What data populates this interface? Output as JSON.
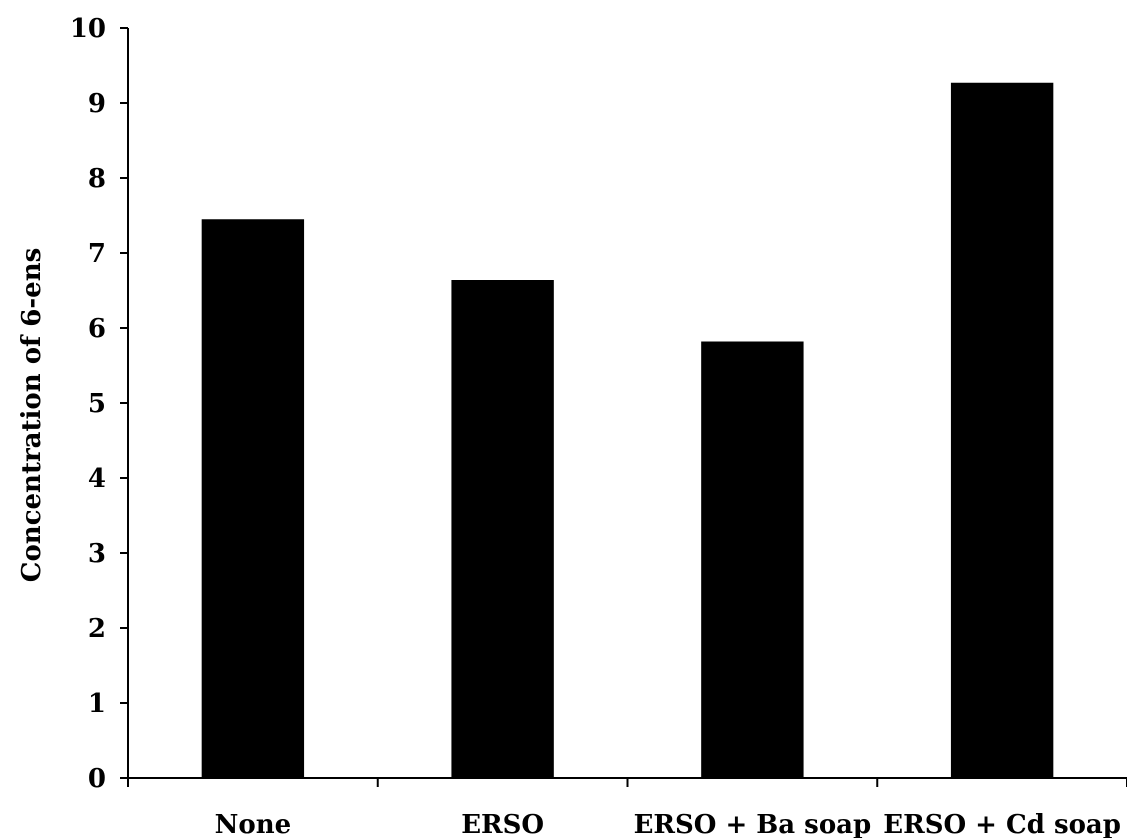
{
  "chart_data": {
    "type": "bar",
    "title": "",
    "xlabel": "",
    "ylabel": "Concentration of 6-ens",
    "categories": [
      "None",
      "ERSO",
      "ERSO + Ba soap",
      "ERSO + Cd soap"
    ],
    "values": [
      7.45,
      6.64,
      5.82,
      9.27
    ],
    "ylim": [
      0,
      10
    ],
    "yticks": [
      "0",
      "1",
      "2",
      "3",
      "4",
      "5",
      "6",
      "7",
      "8",
      "9",
      "10"
    ],
    "grid": false,
    "legend": "none",
    "bar_color": "#000000"
  }
}
